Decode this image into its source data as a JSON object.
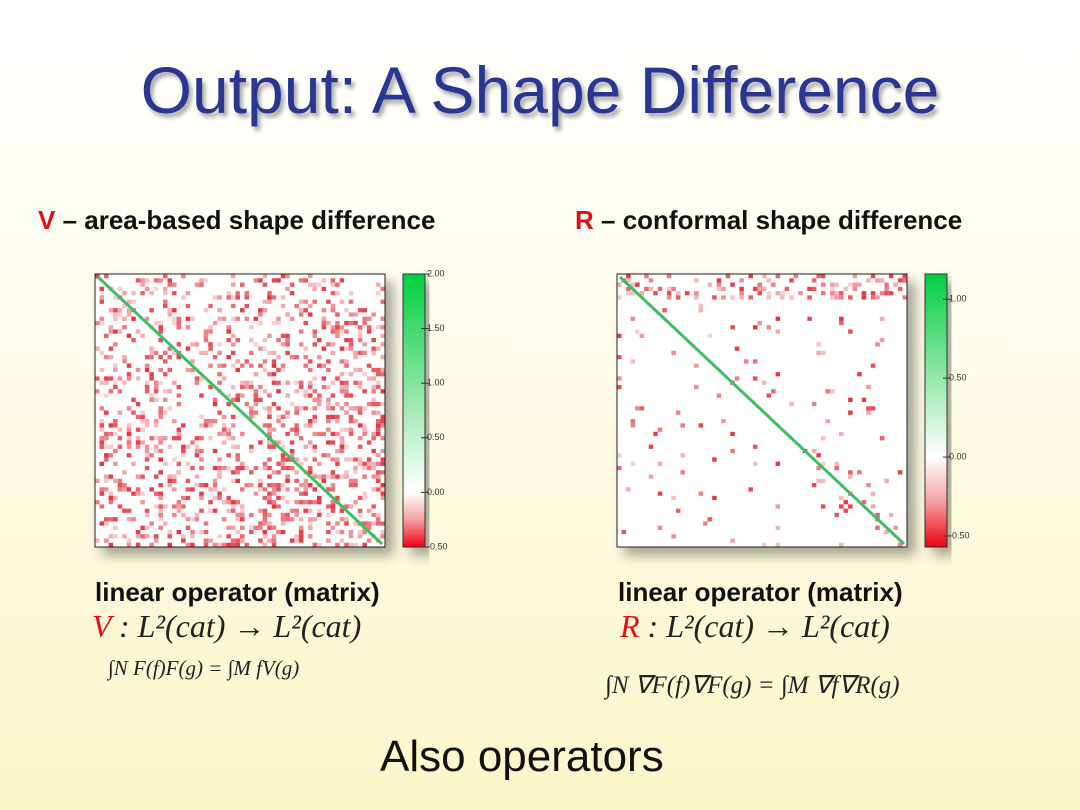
{
  "title": "Output: A Shape Difference",
  "panels": [
    {
      "symbol": "V",
      "heading": " – area-based shape difference",
      "lim": [
        -0.5,
        2
      ],
      "ticks": [
        {
          "value": 2,
          "label": "2.00"
        },
        {
          "value": 1.5,
          "label": "1.50"
        },
        {
          "value": 1,
          "label": "1.00"
        },
        {
          "value": 0.5,
          "label": "0.50"
        },
        {
          "value": 0,
          "label": "0.00"
        },
        {
          "value": -0.5,
          "label": "-0.50"
        }
      ],
      "caption": "linear operator (matrix)",
      "formula": ": L²(cat) → L²(cat)",
      "identity": "∫N F(f)F(g) = ∫M fV(g)"
    },
    {
      "symbol": "R",
      "heading": " – conformal shape difference",
      "lim": [
        -0.57,
        1.16
      ],
      "ticks": [
        {
          "value": 1,
          "label": "1.00"
        },
        {
          "value": 0.5,
          "label": "0.50"
        },
        {
          "value": 0,
          "label": "0.00"
        },
        {
          "value": -0.5,
          "label": "-0.50"
        }
      ],
      "caption": "linear operator (matrix)",
      "formula": ": L²(cat) → L²(cat)",
      "identity": "∫N ∇F(f)∇F(g) = ∫M ∇f∇R(g)"
    }
  ],
  "footer": "Also operators"
}
